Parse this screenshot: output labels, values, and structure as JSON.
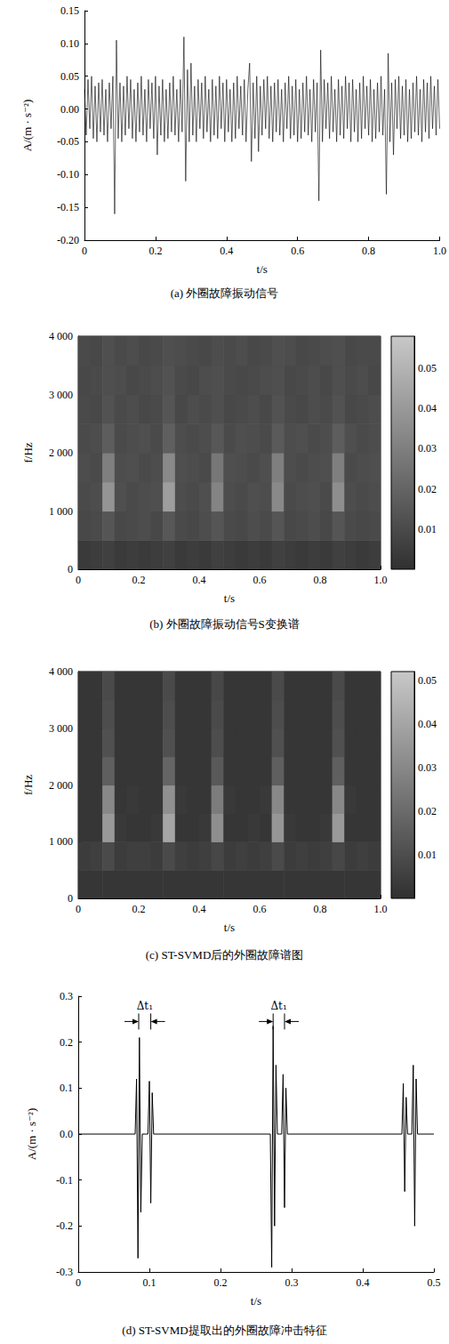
{
  "chart_data": [
    {
      "type": "line",
      "title": "(a) 外圈故障振动信号",
      "xlabel": "t/s",
      "ylabel": "A/(m · s⁻²)",
      "color": "#000000",
      "grid": false,
      "xlim": [
        0,
        1
      ],
      "xticks": [
        0,
        0.2,
        0.4,
        0.6,
        0.8,
        {
          "value": 1,
          "label": "1.0"
        }
      ],
      "ylim": [
        -0.2,
        0.15
      ],
      "yticks": [
        {
          "value": -0.2,
          "label": "-0.20"
        },
        -0.15,
        {
          "value": -0.1,
          "label": "-0.10"
        },
        -0.05,
        {
          "value": 0,
          "label": "0.00"
        },
        0.05,
        {
          "value": 0.1,
          "label": "0.10"
        },
        0.15
      ],
      "x": [
        0,
        0.005,
        0.01,
        0.015,
        0.02,
        0.025,
        0.03,
        0.035,
        0.04,
        0.045,
        0.05,
        0.055,
        0.06,
        0.065,
        0.07,
        0.075,
        0.08,
        0.085,
        0.09,
        0.095,
        0.1,
        0.105,
        0.11,
        0.115,
        0.12,
        0.125,
        0.13,
        0.135,
        0.14,
        0.145,
        0.15,
        0.155,
        0.16,
        0.165,
        0.17,
        0.175,
        0.18,
        0.185,
        0.19,
        0.195,
        0.2,
        0.205,
        0.21,
        0.215,
        0.22,
        0.225,
        0.23,
        0.235,
        0.24,
        0.245,
        0.25,
        0.255,
        0.26,
        0.265,
        0.27,
        0.275,
        0.28,
        0.285,
        0.29,
        0.295,
        0.3,
        0.305,
        0.31,
        0.315,
        0.32,
        0.325,
        0.33,
        0.335,
        0.34,
        0.345,
        0.35,
        0.355,
        0.36,
        0.365,
        0.37,
        0.375,
        0.38,
        0.385,
        0.39,
        0.395,
        0.4,
        0.405,
        0.41,
        0.415,
        0.42,
        0.425,
        0.43,
        0.435,
        0.44,
        0.445,
        0.45,
        0.455,
        0.46,
        0.465,
        0.47,
        0.475,
        0.48,
        0.485,
        0.49,
        0.495,
        0.5,
        0.505,
        0.51,
        0.515,
        0.52,
        0.525,
        0.53,
        0.535,
        0.54,
        0.545,
        0.55,
        0.555,
        0.56,
        0.565,
        0.57,
        0.575,
        0.58,
        0.585,
        0.59,
        0.595,
        0.6,
        0.605,
        0.61,
        0.615,
        0.62,
        0.625,
        0.63,
        0.635,
        0.64,
        0.645,
        0.65,
        0.655,
        0.66,
        0.665,
        0.67,
        0.675,
        0.68,
        0.685,
        0.69,
        0.695,
        0.7,
        0.705,
        0.71,
        0.715,
        0.72,
        0.725,
        0.73,
        0.735,
        0.74,
        0.745,
        0.75,
        0.755,
        0.76,
        0.765,
        0.77,
        0.775,
        0.78,
        0.785,
        0.79,
        0.795,
        0.8,
        0.805,
        0.81,
        0.815,
        0.82,
        0.825,
        0.83,
        0.835,
        0.84,
        0.845,
        0.85,
        0.855,
        0.86,
        0.865,
        0.87,
        0.875,
        0.88,
        0.885,
        0.89,
        0.895,
        0.9,
        0.905,
        0.91,
        0.915,
        0.92,
        0.925,
        0.93,
        0.935,
        0.94,
        0.945,
        0.95,
        0.955,
        0.96,
        0.965,
        0.97,
        0.975,
        0.98,
        0.985,
        0.99,
        0.995,
        1
      ],
      "values": [
        0.03,
        -0.04,
        0.045,
        -0.03,
        0.05,
        -0.045,
        0.035,
        -0.05,
        0.04,
        -0.035,
        0.045,
        -0.04,
        0.03,
        -0.05,
        0.04,
        -0.03,
        0.05,
        -0.16,
        0.105,
        -0.045,
        0.04,
        -0.05,
        0.035,
        -0.04,
        0.05,
        -0.03,
        0.045,
        -0.045,
        0.03,
        -0.05,
        0.04,
        -0.035,
        0.05,
        -0.04,
        0.03,
        -0.05,
        0.045,
        -0.03,
        0.04,
        -0.045,
        0.05,
        -0.07,
        0.035,
        -0.04,
        0.045,
        -0.05,
        0.03,
        -0.045,
        0.04,
        -0.035,
        0.05,
        -0.04,
        0.03,
        -0.05,
        0.045,
        -0.035,
        0.11,
        -0.11,
        0.06,
        -0.05,
        0.07,
        -0.04,
        0.035,
        -0.05,
        0.045,
        -0.03,
        0.04,
        -0.045,
        0.05,
        -0.035,
        0.03,
        -0.05,
        0.045,
        -0.04,
        0.035,
        -0.045,
        0.05,
        -0.03,
        0.04,
        -0.05,
        0.045,
        -0.035,
        0.03,
        -0.05,
        0.04,
        -0.045,
        0.05,
        -0.03,
        0.035,
        -0.04,
        0.045,
        -0.05,
        0.03,
        0.07,
        -0.08,
        0.04,
        -0.045,
        0.05,
        -0.065,
        0.035,
        -0.04,
        0.045,
        -0.03,
        0.05,
        -0.045,
        0.035,
        -0.05,
        0.04,
        -0.035,
        0.045,
        -0.04,
        0.03,
        -0.05,
        0.04,
        -0.03,
        0.05,
        -0.045,
        0.035,
        -0.04,
        0.045,
        -0.05,
        0.03,
        -0.045,
        0.04,
        -0.035,
        0.05,
        -0.04,
        0.03,
        -0.05,
        0.045,
        -0.035,
        0.04,
        -0.14,
        0.09,
        -0.05,
        0.045,
        -0.03,
        0.04,
        -0.045,
        0.05,
        -0.035,
        0.03,
        -0.05,
        0.045,
        -0.04,
        0.035,
        -0.045,
        0.05,
        -0.03,
        0.04,
        -0.05,
        0.045,
        -0.035,
        0.03,
        -0.05,
        0.04,
        -0.045,
        0.05,
        -0.03,
        0.035,
        -0.04,
        0.045,
        -0.05,
        0.03,
        -0.045,
        0.04,
        -0.035,
        0.05,
        -0.04,
        0.03,
        -0.13,
        0.085,
        -0.05,
        0.04,
        -0.07,
        0.045,
        -0.03,
        0.05,
        -0.045,
        0.035,
        -0.04,
        0.045,
        -0.05,
        0.03,
        -0.045,
        0.04,
        -0.035,
        0.05,
        -0.04,
        0.03,
        -0.05,
        0.045,
        -0.035,
        0.04,
        -0.045,
        0.05,
        -0.03,
        0.035,
        -0.04,
        0.045,
        -0.03
      ]
    },
    {
      "type": "heatmap",
      "title": "(b) 外圈故障振动信号S变换谱",
      "xlabel": "t/s",
      "ylabel": "f/Hz",
      "grid": false,
      "xlim": [
        0,
        1
      ],
      "xticks": [
        0,
        0.2,
        0.4,
        0.6,
        0.8,
        {
          "value": 1,
          "label": "1.0"
        }
      ],
      "ylim": [
        0,
        4000
      ],
      "yticks": [
        0,
        {
          "value": 1000,
          "label": "1 000"
        },
        {
          "value": 2000,
          "label": "2 000"
        },
        {
          "value": 3000,
          "label": "3 000"
        },
        {
          "value": 4000,
          "label": "4 000"
        }
      ],
      "x_bins": [
        0,
        0.04,
        0.08,
        0.12,
        0.16,
        0.2,
        0.24,
        0.28,
        0.32,
        0.36,
        0.4,
        0.44,
        0.48,
        0.52,
        0.56,
        0.6,
        0.64,
        0.68,
        0.72,
        0.76,
        0.8,
        0.84,
        0.88,
        0.92,
        0.96,
        1
      ],
      "y_bins": [
        0,
        500,
        1000,
        1500,
        2000,
        2500,
        3000,
        3500,
        4000
      ],
      "cells": [
        [
          0.004,
          0.005,
          0.006,
          0.004,
          0.005,
          0.004,
          0.005,
          0.006,
          0.004,
          0.005,
          0.004,
          0.006,
          0.005,
          0.004,
          0.005,
          0.004,
          0.006,
          0.005,
          0.004,
          0.005,
          0.004,
          0.006,
          0.005,
          0.004,
          0.005
        ],
        [
          0.009,
          0.01,
          0.014,
          0.009,
          0.01,
          0.011,
          0.009,
          0.015,
          0.01,
          0.009,
          0.011,
          0.014,
          0.01,
          0.009,
          0.011,
          0.01,
          0.014,
          0.009,
          0.01,
          0.011,
          0.009,
          0.014,
          0.01,
          0.009,
          0.01
        ],
        [
          0.01,
          0.011,
          0.038,
          0.012,
          0.01,
          0.011,
          0.012,
          0.042,
          0.011,
          0.01,
          0.012,
          0.032,
          0.011,
          0.01,
          0.012,
          0.011,
          0.034,
          0.01,
          0.011,
          0.012,
          0.01,
          0.036,
          0.011,
          0.01,
          0.011
        ],
        [
          0.011,
          0.01,
          0.03,
          0.011,
          0.012,
          0.01,
          0.011,
          0.034,
          0.012,
          0.011,
          0.01,
          0.027,
          0.012,
          0.011,
          0.01,
          0.012,
          0.03,
          0.011,
          0.01,
          0.011,
          0.012,
          0.03,
          0.01,
          0.011,
          0.012
        ],
        [
          0.01,
          0.011,
          0.017,
          0.01,
          0.011,
          0.012,
          0.01,
          0.018,
          0.011,
          0.01,
          0.011,
          0.015,
          0.01,
          0.012,
          0.011,
          0.01,
          0.016,
          0.011,
          0.012,
          0.01,
          0.011,
          0.017,
          0.012,
          0.01,
          0.011
        ],
        [
          0.01,
          0.009,
          0.013,
          0.01,
          0.011,
          0.009,
          0.01,
          0.014,
          0.009,
          0.011,
          0.01,
          0.012,
          0.009,
          0.01,
          0.011,
          0.009,
          0.013,
          0.01,
          0.009,
          0.011,
          0.01,
          0.013,
          0.009,
          0.01,
          0.011
        ],
        [
          0.009,
          0.01,
          0.012,
          0.011,
          0.009,
          0.01,
          0.011,
          0.013,
          0.01,
          0.009,
          0.011,
          0.012,
          0.01,
          0.009,
          0.01,
          0.011,
          0.012,
          0.009,
          0.01,
          0.011,
          0.009,
          0.012,
          0.01,
          0.011,
          0.009
        ],
        [
          0.01,
          0.009,
          0.012,
          0.01,
          0.011,
          0.009,
          0.01,
          0.012,
          0.011,
          0.01,
          0.009,
          0.011,
          0.01,
          0.011,
          0.009,
          0.01,
          0.012,
          0.011,
          0.009,
          0.01,
          0.011,
          0.012,
          0.009,
          0.01,
          0.01
        ]
      ],
      "colorbar": {
        "range": [
          0,
          0.058
        ],
        "ticks": [
          0.01,
          0.02,
          0.03,
          0.04,
          0.05
        ]
      }
    },
    {
      "type": "heatmap",
      "title": "(c) ST-SVMD后的外圈故障谱图",
      "xlabel": "t/s",
      "ylabel": "f/Hz",
      "grid": false,
      "xlim": [
        0,
        1
      ],
      "xticks": [
        0,
        0.2,
        0.4,
        0.6,
        0.8,
        {
          "value": 1,
          "label": "1.0"
        }
      ],
      "ylim": [
        0,
        4000
      ],
      "yticks": [
        0,
        {
          "value": 1000,
          "label": "1 000"
        },
        {
          "value": 2000,
          "label": "2 000"
        },
        {
          "value": 3000,
          "label": "3 000"
        },
        {
          "value": 4000,
          "label": "4 000"
        }
      ],
      "x_bins": [
        0,
        0.04,
        0.08,
        0.12,
        0.16,
        0.2,
        0.24,
        0.28,
        0.32,
        0.36,
        0.4,
        0.44,
        0.48,
        0.52,
        0.56,
        0.6,
        0.64,
        0.68,
        0.72,
        0.76,
        0.8,
        0.84,
        0.88,
        0.92,
        0.96,
        1
      ],
      "y_bins": [
        0,
        500,
        1000,
        1500,
        2000,
        2500,
        3000,
        3500,
        4000
      ],
      "cells": [
        [
          0.002,
          0.002,
          0.002,
          0.002,
          0.002,
          0.002,
          0.002,
          0.002,
          0.002,
          0.002,
          0.002,
          0.002,
          0.002,
          0.002,
          0.002,
          0.002,
          0.002,
          0.002,
          0.002,
          0.002,
          0.002,
          0.002,
          0.002,
          0.002,
          0.002
        ],
        [
          0.004,
          0.005,
          0.009,
          0.004,
          0.005,
          0.005,
          0.004,
          0.009,
          0.005,
          0.004,
          0.005,
          0.008,
          0.004,
          0.005,
          0.004,
          0.005,
          0.009,
          0.004,
          0.005,
          0.004,
          0.005,
          0.008,
          0.004,
          0.005,
          0.004
        ],
        [
          0.002,
          0.002,
          0.036,
          0.003,
          0.002,
          0.002,
          0.003,
          0.04,
          0.002,
          0.002,
          0.003,
          0.032,
          0.002,
          0.002,
          0.003,
          0.002,
          0.035,
          0.003,
          0.002,
          0.002,
          0.003,
          0.036,
          0.002,
          0.002,
          0.002
        ],
        [
          0.002,
          0.002,
          0.03,
          0.002,
          0.003,
          0.002,
          0.002,
          0.033,
          0.003,
          0.002,
          0.002,
          0.026,
          0.003,
          0.002,
          0.002,
          0.003,
          0.03,
          0.002,
          0.002,
          0.002,
          0.002,
          0.03,
          0.003,
          0.002,
          0.002
        ],
        [
          0.002,
          0.002,
          0.016,
          0.002,
          0.002,
          0.002,
          0.002,
          0.018,
          0.002,
          0.002,
          0.002,
          0.014,
          0.002,
          0.002,
          0.002,
          0.002,
          0.016,
          0.002,
          0.002,
          0.002,
          0.002,
          0.016,
          0.002,
          0.002,
          0.002
        ],
        [
          0.002,
          0.002,
          0.011,
          0.002,
          0.002,
          0.002,
          0.002,
          0.011,
          0.002,
          0.002,
          0.002,
          0.01,
          0.002,
          0.002,
          0.002,
          0.002,
          0.011,
          0.002,
          0.002,
          0.002,
          0.002,
          0.011,
          0.002,
          0.002,
          0.002
        ],
        [
          0.002,
          0.002,
          0.01,
          0.002,
          0.002,
          0.002,
          0.002,
          0.01,
          0.002,
          0.002,
          0.002,
          0.009,
          0.002,
          0.002,
          0.002,
          0.002,
          0.01,
          0.002,
          0.002,
          0.002,
          0.002,
          0.01,
          0.002,
          0.002,
          0.002
        ],
        [
          0.002,
          0.002,
          0.009,
          0.002,
          0.002,
          0.002,
          0.002,
          0.009,
          0.002,
          0.002,
          0.002,
          0.008,
          0.002,
          0.002,
          0.002,
          0.002,
          0.009,
          0.002,
          0.002,
          0.002,
          0.002,
          0.009,
          0.002,
          0.002,
          0.002
        ]
      ],
      "colorbar": {
        "range": [
          0,
          0.052
        ],
        "ticks": [
          0.01,
          0.02,
          0.03,
          0.04,
          0.05
        ]
      }
    },
    {
      "type": "line",
      "title": "(d) ST-SVMD提取出的外圈故障冲击特征",
      "xlabel": "t/s",
      "ylabel": "A/(m · s⁻²)",
      "color": "#000000",
      "grid": false,
      "xlim": [
        0,
        0.5
      ],
      "xticks": [
        0,
        0.1,
        0.2,
        0.3,
        0.4,
        0.5
      ],
      "ylim": [
        -0.3,
        0.3
      ],
      "yticks": [
        -0.3,
        -0.2,
        -0.1,
        {
          "value": 0,
          "label": "0.0"
        },
        0.1,
        0.2,
        0.3
      ],
      "x": [
        0,
        0.08,
        0.082,
        0.084,
        0.086,
        0.088,
        0.09,
        0.098,
        0.1,
        0.102,
        0.104,
        0.106,
        0.27,
        0.272,
        0.274,
        0.276,
        0.278,
        0.28,
        0.286,
        0.288,
        0.29,
        0.292,
        0.294,
        0.455,
        0.457,
        0.459,
        0.461,
        0.463,
        0.469,
        0.471,
        0.473,
        0.475,
        0.477,
        0.5
      ],
      "values": [
        0,
        0,
        0.12,
        -0.27,
        0.21,
        -0.17,
        0,
        0,
        0.115,
        -0.15,
        0.09,
        0,
        0,
        -0.29,
        0.235,
        -0.2,
        0.15,
        0,
        0,
        0.13,
        -0.16,
        0.1,
        0,
        0,
        0.11,
        -0.125,
        0.08,
        0,
        0,
        0.15,
        -0.2,
        0.12,
        0,
        0
      ],
      "annotations": [
        {
          "text": "Δt₁",
          "x": [
            0.085,
            0.102
          ],
          "y": 0.245
        },
        {
          "text": "Δt₁",
          "x": [
            0.274,
            0.29
          ],
          "y": 0.245
        }
      ]
    }
  ]
}
